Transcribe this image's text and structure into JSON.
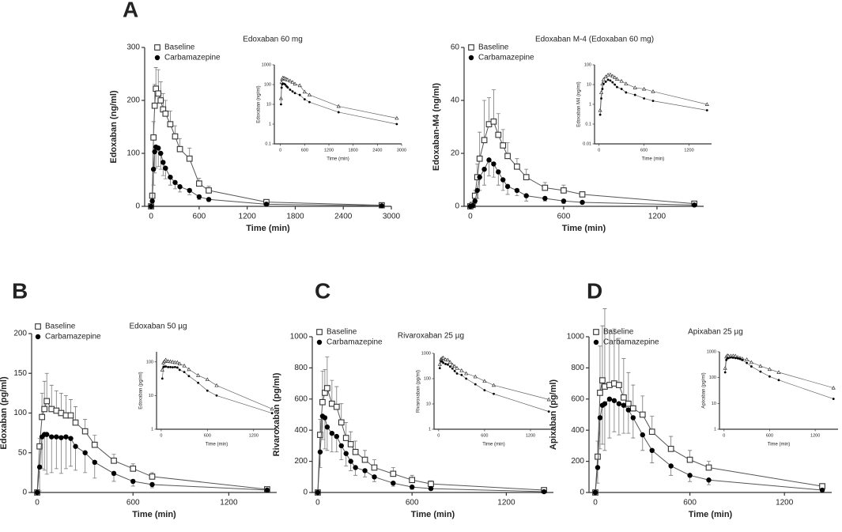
{
  "chart_data": [
    {
      "type": "line",
      "panel": "A",
      "title": "Edoxaban 60 mg",
      "xlabel": "Time (min)",
      "ylabel": "Edoxaban (ng/ml)",
      "x": [
        0,
        15,
        30,
        45,
        60,
        90,
        120,
        150,
        180,
        240,
        300,
        360,
        480,
        600,
        720,
        1440,
        2880
      ],
      "xlim": [
        -80,
        3000
      ],
      "xticks": [
        0,
        600,
        1200,
        1800,
        2400,
        3000
      ],
      "ylim": [
        0,
        300
      ],
      "yticks": [
        0,
        100,
        200,
        300
      ],
      "series": [
        {
          "name": "Baseline",
          "color": "#333333",
          "marker": "square",
          "error_direction": "up",
          "values": [
            0,
            20,
            130,
            190,
            222,
            213,
            200,
            183,
            175,
            155,
            132,
            108,
            90,
            43,
            30,
            8,
            2
          ],
          "errors": [
            0,
            5,
            30,
            40,
            40,
            45,
            35,
            30,
            25,
            25,
            20,
            20,
            20,
            10,
            8,
            3,
            1
          ]
        },
        {
          "name": "Carbamazepine",
          "color": "#000000",
          "marker": "circle",
          "error_direction": "down",
          "values": [
            0,
            10,
            70,
            103,
            112,
            110,
            100,
            83,
            72,
            55,
            45,
            37,
            30,
            18,
            13,
            4,
            1
          ],
          "errors": [
            0,
            5,
            30,
            40,
            40,
            35,
            30,
            25,
            20,
            15,
            12,
            10,
            8,
            5,
            4,
            2,
            0.5
          ]
        }
      ],
      "inset": {
        "xlabel": "Time (min)",
        "ylabel": "Edoxaban (ng/ml)",
        "log_y": true,
        "markers": [
          "triangle",
          "circle"
        ],
        "xlim": [
          -150,
          3000
        ],
        "xticks": [
          0,
          600,
          1200,
          1800,
          2400,
          3000
        ],
        "ylim": [
          0.1,
          1000
        ],
        "yticks": [
          0.1,
          1,
          10,
          100,
          1000
        ]
      }
    },
    {
      "type": "line",
      "title": "Edoxaban M-4 (Edoxaban 60 mg)",
      "xlabel": "Time (min)",
      "ylabel": "Edoxaban-M4 (ng/ml)",
      "x": [
        0,
        15,
        30,
        45,
        60,
        90,
        120,
        150,
        180,
        210,
        240,
        300,
        360,
        480,
        600,
        720,
        1440
      ],
      "xlim": [
        -40,
        1500
      ],
      "xticks": [
        0,
        600,
        1200
      ],
      "ylim": [
        0,
        60
      ],
      "yticks": [
        0,
        20,
        40,
        60
      ],
      "series": [
        {
          "name": "Baseline",
          "color": "#333333",
          "marker": "square",
          "error_direction": "up",
          "values": [
            0,
            0.5,
            4,
            11,
            18,
            25,
            31,
            32,
            27,
            23,
            19,
            15,
            11,
            7,
            6,
            4.5,
            1
          ],
          "errors": [
            0,
            0.3,
            2,
            5,
            10,
            15,
            10,
            12,
            8,
            6,
            5,
            3,
            3,
            2,
            2,
            1,
            0.5
          ]
        },
        {
          "name": "Carbamazepine",
          "color": "#000000",
          "marker": "circle",
          "error_direction": "down",
          "values": [
            0,
            0.3,
            2,
            6,
            11,
            14,
            17.5,
            16,
            13,
            10,
            7.5,
            6,
            4,
            3,
            2,
            1.5,
            0.5
          ],
          "errors": [
            0,
            0.2,
            1,
            3,
            5,
            6,
            6,
            5,
            5,
            4,
            3,
            2,
            2,
            1,
            1,
            0.5,
            0.2
          ]
        }
      ],
      "inset": {
        "xlabel": "Time (min)",
        "ylabel": "Edoxaban M4 (ng/ml)",
        "log_y": true,
        "markers": [
          "triangle",
          "circle"
        ],
        "xlim": [
          -60,
          1500
        ],
        "xticks": [
          0,
          600,
          1200
        ],
        "ylim": [
          0.01,
          100
        ],
        "yticks": [
          0.01,
          0.1,
          1,
          10,
          100
        ]
      }
    },
    {
      "type": "line",
      "panel": "B",
      "title": "Edoxaban 50 µg",
      "xlabel": "Time (min)",
      "ylabel": "Edoxaban (pg/ml)",
      "x": [
        0,
        15,
        30,
        45,
        60,
        90,
        120,
        150,
        180,
        210,
        240,
        300,
        360,
        480,
        600,
        720,
        1440
      ],
      "xlim": [
        -35,
        1500
      ],
      "xticks": [
        0,
        600,
        1200
      ],
      "ylim": [
        0,
        200
      ],
      "yticks": [
        0,
        50,
        100,
        150,
        200
      ],
      "series": [
        {
          "name": "Baseline",
          "color": "#333333",
          "marker": "square",
          "error_direction": "up",
          "values": [
            0,
            58,
            95,
            105,
            115,
            105,
            103,
            100,
            97,
            97,
            88,
            77,
            60,
            40,
            30,
            20,
            4
          ],
          "errors": [
            0,
            10,
            30,
            35,
            35,
            30,
            25,
            25,
            25,
            20,
            20,
            15,
            12,
            8,
            6,
            5,
            2
          ]
        },
        {
          "name": "Carbamazepine",
          "color": "#000000",
          "marker": "circle",
          "error_direction": "down",
          "values": [
            0,
            32,
            70,
            73,
            73,
            70,
            70,
            69,
            70,
            68,
            58,
            50,
            38,
            24,
            14,
            10,
            3
          ],
          "errors": [
            0,
            30,
            40,
            45,
            50,
            45,
            40,
            45,
            40,
            35,
            30,
            25,
            20,
            10,
            6,
            4,
            1
          ]
        }
      ],
      "inset": {
        "xlabel": "Time (min)",
        "ylabel": "Edoxaban (pg/ml)",
        "log_y": true,
        "markers": [
          "triangle",
          "circle"
        ],
        "xlim": [
          -60,
          1500
        ],
        "xticks": [
          0,
          600,
          1200
        ],
        "ylim": [
          1,
          200
        ],
        "yticks": [
          1,
          10,
          100
        ]
      }
    },
    {
      "type": "line",
      "panel": "C",
      "title": "Rivaroxaban 25 µg",
      "xlabel": "Time (min)",
      "ylabel": "Rivaroxaban (pg/ml)",
      "x": [
        0,
        15,
        30,
        45,
        60,
        90,
        120,
        150,
        180,
        210,
        240,
        300,
        360,
        480,
        600,
        720,
        1440
      ],
      "xlim": [
        -35,
        1500
      ],
      "xticks": [
        0,
        600,
        1200
      ],
      "ylim": [
        0,
        1000
      ],
      "yticks": [
        0,
        200,
        400,
        600,
        800,
        1000
      ],
      "series": [
        {
          "name": "Baseline",
          "color": "#333333",
          "marker": "square",
          "error_direction": "up",
          "values": [
            0,
            370,
            580,
            640,
            670,
            570,
            550,
            450,
            350,
            310,
            260,
            210,
            160,
            120,
            80,
            55,
            15
          ],
          "errors": [
            0,
            100,
            200,
            150,
            200,
            150,
            130,
            120,
            100,
            80,
            70,
            60,
            50,
            40,
            30,
            20,
            5
          ]
        },
        {
          "name": "Carbamazepine",
          "color": "#000000",
          "marker": "circle",
          "error_direction": "down",
          "values": [
            0,
            260,
            490,
            480,
            420,
            380,
            360,
            300,
            250,
            200,
            160,
            140,
            100,
            60,
            35,
            25,
            5
          ],
          "errors": [
            0,
            100,
            150,
            200,
            150,
            120,
            100,
            90,
            80,
            60,
            50,
            40,
            30,
            20,
            15,
            10,
            3
          ]
        }
      ],
      "inset": {
        "xlabel": "Time (min)",
        "ylabel": "Rivaroxaban (pg/ml)",
        "log_y": true,
        "markers": [
          "triangle",
          "circle"
        ],
        "xlim": [
          -60,
          1500
        ],
        "xticks": [
          0,
          600,
          1200
        ],
        "ylim": [
          1,
          1000
        ],
        "yticks": [
          1,
          10,
          100,
          1000
        ]
      }
    },
    {
      "type": "line",
      "panel": "D",
      "title": "Apixaban 25 µg",
      "xlabel": "Time (min)",
      "ylabel": "Apixaban (pg/ml)",
      "x": [
        0,
        15,
        30,
        45,
        60,
        90,
        120,
        150,
        180,
        210,
        240,
        300,
        360,
        480,
        600,
        720,
        1440
      ],
      "xlim": [
        -40,
        1500
      ],
      "xticks": [
        0,
        600,
        1200
      ],
      "ylim": [
        0,
        1000
      ],
      "yticks": [
        0,
        200,
        400,
        600,
        800,
        1000
      ],
      "series": [
        {
          "name": "Baseline",
          "color": "#333333",
          "marker": "square",
          "error_direction": "up",
          "values": [
            0,
            230,
            640,
            720,
            680,
            690,
            700,
            690,
            610,
            570,
            540,
            500,
            390,
            280,
            210,
            160,
            40
          ],
          "errors": [
            0,
            100,
            300,
            350,
            500,
            350,
            350,
            300,
            250,
            200,
            150,
            120,
            100,
            80,
            60,
            40,
            10
          ]
        },
        {
          "name": "Carbamazepine",
          "color": "#000000",
          "marker": "circle",
          "error_direction": "down",
          "values": [
            0,
            160,
            480,
            560,
            570,
            600,
            590,
            570,
            560,
            530,
            480,
            370,
            270,
            170,
            110,
            80,
            15
          ],
          "errors": [
            0,
            100,
            200,
            250,
            300,
            250,
            200,
            200,
            180,
            150,
            130,
            100,
            80,
            60,
            40,
            30,
            10
          ]
        }
      ],
      "inset": {
        "xlabel": "Time (min)",
        "ylabel": "Apixaban (pg/ml)",
        "log_y": true,
        "markers": [
          "triangle",
          "circle"
        ],
        "xlim": [
          -60,
          1500
        ],
        "xticks": [
          0,
          600,
          1200
        ],
        "ylim": [
          1,
          1000
        ],
        "yticks": [
          1,
          10,
          100,
          1000
        ]
      }
    }
  ]
}
